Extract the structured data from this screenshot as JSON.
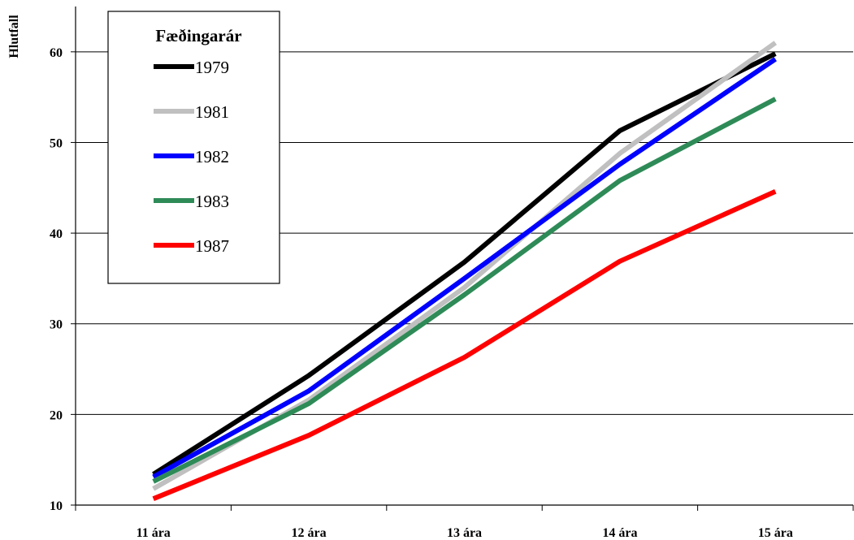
{
  "chart_data": {
    "type": "line",
    "title": "",
    "xlabel": "",
    "ylabel": "Hlutfall",
    "categories": [
      "11 ára",
      "12 ára",
      "13 ára",
      "14 ára",
      "15 ára"
    ],
    "ylim": [
      10,
      65
    ],
    "yticks": [
      10,
      20,
      30,
      40,
      50,
      60
    ],
    "grid": true,
    "legend": {
      "title": "Fæðingarár",
      "placement": "top-left"
    },
    "series": [
      {
        "name": "1979",
        "color": "#000000",
        "values": [
          13.4,
          24.3,
          36.8,
          51.3,
          59.8
        ]
      },
      {
        "name": "1981",
        "color": "#c0c0c0",
        "values": [
          11.8,
          21.6,
          34.0,
          48.8,
          61.0
        ]
      },
      {
        "name": "1982",
        "color": "#0000ff",
        "values": [
          13.1,
          22.6,
          35.0,
          47.6,
          59.2
        ]
      },
      {
        "name": "1983",
        "color": "#2e8b57",
        "values": [
          12.6,
          21.2,
          33.2,
          45.8,
          54.8
        ]
      },
      {
        "name": "1987",
        "color": "#ff0000",
        "values": [
          10.7,
          17.7,
          26.3,
          36.9,
          44.6
        ]
      }
    ]
  }
}
